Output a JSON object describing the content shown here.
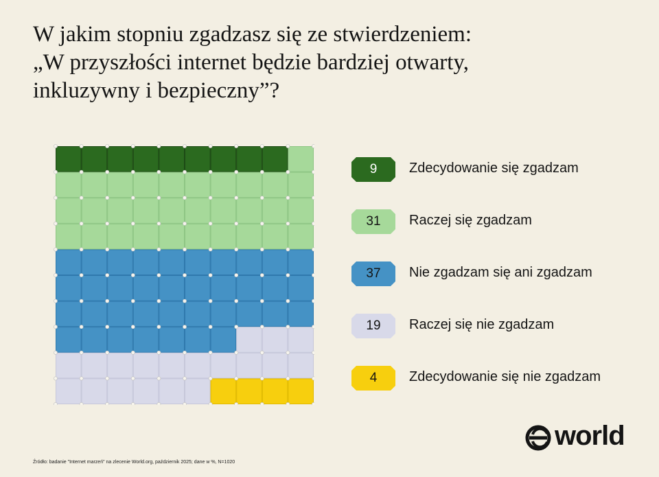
{
  "title_lines": [
    "W jakim stopniu zgadzasz się ze stwierdzeniem:",
    "„W przyszłości internet będzie bardziej otwarty,",
    "inkluzywny i bezpieczny”?"
  ],
  "chart_data": {
    "type": "waffle",
    "grid": {
      "rows": 10,
      "cols": 10
    },
    "categories": [
      "Zdecydowanie się zgadzam",
      "Raczej się zgadzam",
      "Nie zgadzam się ani zgadzam",
      "Raczej się nie zgadzam",
      "Zdecydowanie się nie zgadzam"
    ],
    "values": [
      9,
      31,
      37,
      19,
      4
    ],
    "colors": [
      "#2b6a1f",
      "#a6d99a",
      "#4592c5",
      "#d8d9e9",
      "#f7cf0e"
    ],
    "badge_text_colors": [
      "#ffffff",
      "#141414",
      "#141414",
      "#141414",
      "#141414"
    ],
    "unit": "%",
    "legend_position": "right"
  },
  "source": "Źródło: badanie \"Internet marzeń\" na zlecenie World.org, październik 2025; dane w %, N=1020",
  "logo_text": "world"
}
